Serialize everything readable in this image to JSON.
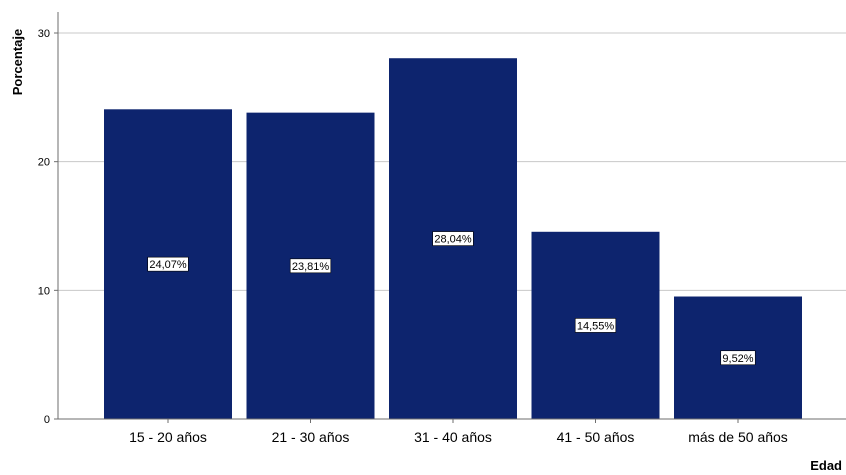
{
  "chart_data": {
    "type": "bar",
    "categories": [
      "15 - 20 años",
      "21 - 30 años",
      "31 - 40 años",
      "41 - 50 años",
      "más de 50 años"
    ],
    "values": [
      24.07,
      23.81,
      28.04,
      14.55,
      9.52
    ],
    "data_labels": [
      "24,07%",
      "23,81%",
      "28,04%",
      "14,55%",
      "9,52%"
    ],
    "xlabel": "Edad",
    "ylabel": "Porcentaje",
    "ylim": [
      0,
      30
    ],
    "yticks": [
      0,
      10,
      20,
      30
    ],
    "ytick_labels": [
      "0",
      "10",
      "20",
      "30"
    ],
    "grid": true,
    "colors": {
      "bar": "#0d246e",
      "grid": "#c8c8c8",
      "axis": "#6e6e6e"
    }
  }
}
